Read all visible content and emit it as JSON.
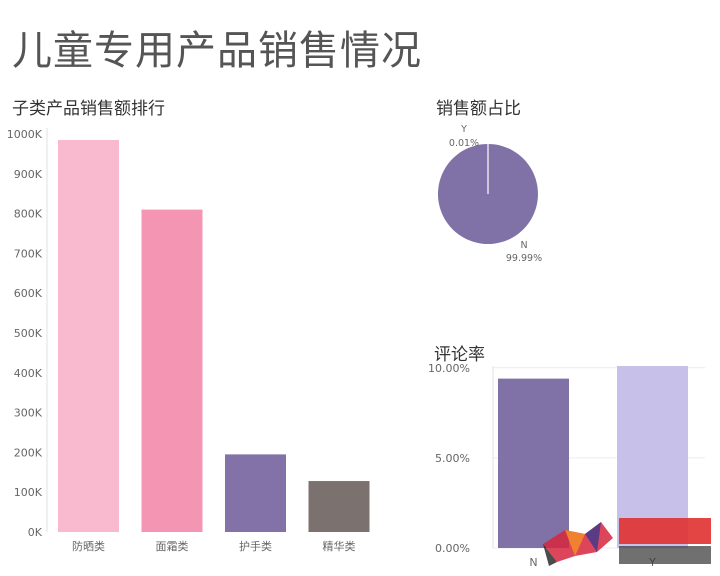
{
  "page_title": "儿童专用产品销售情况",
  "chart_data": [
    {
      "type": "bar",
      "title": "子类产品销售额排行",
      "categories": [
        "防晒类",
        "面霜类",
        "护手类",
        "精华类"
      ],
      "values": [
        985000,
        810000,
        195000,
        128000
      ],
      "colors": [
        "#f9bad0",
        "#f395b3",
        "#8272a8",
        "#7b716f"
      ],
      "ylim": [
        0,
        1000000
      ],
      "yticks": [
        0,
        100000,
        200000,
        300000,
        400000,
        500000,
        600000,
        700000,
        800000,
        900000,
        1000000
      ],
      "ytick_labels": [
        "0K",
        "100K",
        "200K",
        "300K",
        "400K",
        "500K",
        "600K",
        "700K",
        "800K",
        "900K",
        "1000K"
      ],
      "grid": false
    },
    {
      "type": "pie",
      "title": "销售额占比",
      "labels": [
        "Y",
        "N"
      ],
      "values": [
        0.01,
        99.99
      ],
      "value_labels": [
        "0.01%",
        "99.99%"
      ],
      "colors": [
        "#ffffff",
        "#8072a6"
      ]
    },
    {
      "type": "bar",
      "title": "评论率",
      "categories": [
        "N",
        "Y"
      ],
      "values": [
        9.4,
        10.1
      ],
      "colors": [
        "#8072a6",
        "#c7c1ea"
      ],
      "ylim": [
        0,
        10.1
      ],
      "yticks": [
        0,
        5,
        10
      ],
      "ytick_labels": [
        "0.00%",
        "5.00%",
        "10.00%"
      ],
      "grid": true
    }
  ]
}
